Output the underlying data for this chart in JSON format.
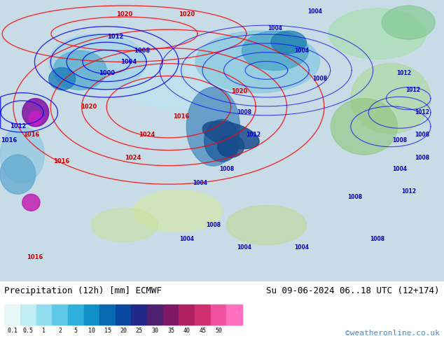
{
  "title_left": "Precipitation (12h) [mm] ECMWF",
  "title_right": "Su 09-06-2024 06..18 UTC (12+174)",
  "copyright": "©weatheronline.co.uk",
  "colorbar_values": [
    0.1,
    0.5,
    1,
    2,
    5,
    10,
    15,
    20,
    25,
    30,
    35,
    40,
    45,
    50
  ],
  "colorbar_colors": [
    "#e8f8f8",
    "#c0eef4",
    "#90ddf0",
    "#60c8e8",
    "#30b0dc",
    "#1090c8",
    "#0868b0",
    "#0848a0",
    "#202888",
    "#502070",
    "#801868",
    "#b02060",
    "#d03070",
    "#f050a0",
    "#ff70c0"
  ],
  "figsize": [
    6.34,
    4.9
  ],
  "dpi": 100,
  "ocean_bg": "#c8dce8",
  "bot_bg": "#ffffff",
  "blue_label_color": "#0000cc",
  "red_label_color": "#cc0000",
  "copyright_color": "#4488cc"
}
